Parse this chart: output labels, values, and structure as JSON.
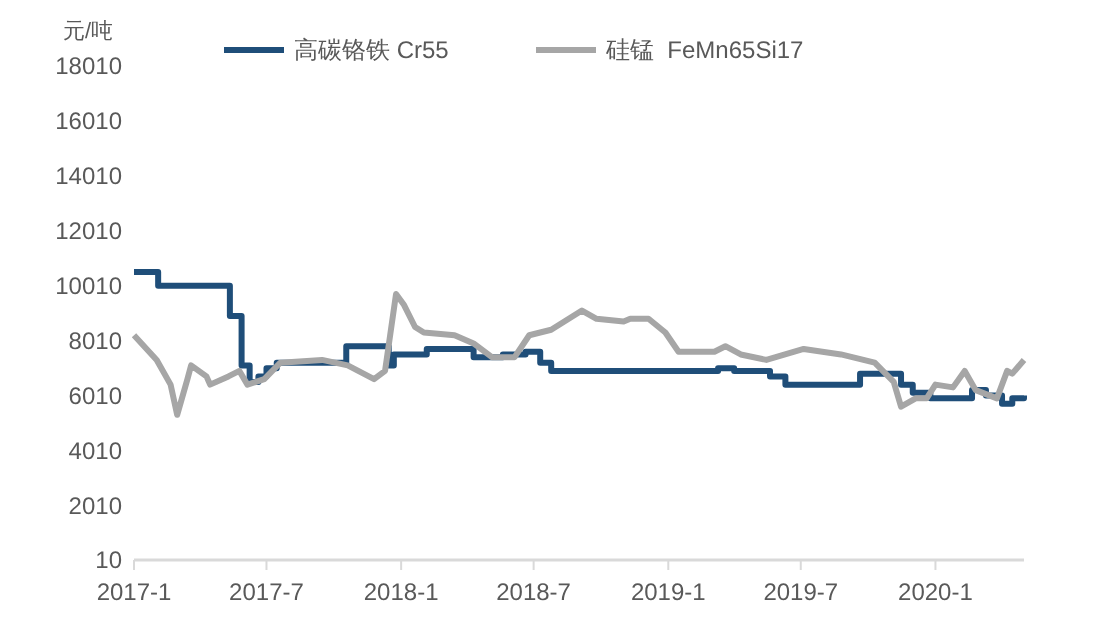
{
  "chart_data": {
    "type": "line",
    "ylabel": "元/吨",
    "xlim": [
      "2017-01-01",
      "2020-05-01"
    ],
    "xticks": [
      {
        "value": "2017-01-01",
        "label": "2017-1"
      },
      {
        "value": "2017-07-01",
        "label": "2017-7"
      },
      {
        "value": "2018-01-01",
        "label": "2018-1"
      },
      {
        "value": "2018-07-01",
        "label": "2018-7"
      },
      {
        "value": "2019-01-01",
        "label": "2019-1"
      },
      {
        "value": "2019-07-01",
        "label": "2019-7"
      },
      {
        "value": "2020-01-01",
        "label": "2020-1"
      }
    ],
    "ylim": [
      10,
      18010
    ],
    "yticks": [
      10,
      2010,
      4010,
      6010,
      8010,
      10010,
      12010,
      14010,
      16010,
      18010
    ],
    "grid": false,
    "legend": "top",
    "marker": "none",
    "line_style": "solid",
    "series": [
      {
        "name": "高碳铬铁 Cr55",
        "type": "step",
        "color": "#1f4e79",
        "x": [
          "2017-01-01",
          "2017-02-03",
          "2017-05-12",
          "2017-05-28",
          "2017-06-08",
          "2017-06-20",
          "2017-07-01",
          "2017-07-15",
          "2017-10-18",
          "2017-12-15",
          "2017-12-22",
          "2018-02-05",
          "2018-04-10",
          "2018-05-20",
          "2018-06-20",
          "2018-07-10",
          "2018-07-25",
          "2019-03-10",
          "2019-04-01",
          "2019-05-20",
          "2019-06-10",
          "2019-09-20",
          "2019-11-15",
          "2019-12-01",
          "2019-12-25",
          "2020-02-20",
          "2020-03-10",
          "2020-04-01",
          "2020-04-15",
          "2020-05-01"
        ],
        "values": [
          10500,
          10000,
          8900,
          7100,
          6500,
          6700,
          7000,
          7200,
          7800,
          7100,
          7500,
          7700,
          7400,
          7500,
          7600,
          7200,
          6900,
          7000,
          6900,
          6700,
          6400,
          6800,
          6400,
          6100,
          5900,
          6200,
          6000,
          5700,
          5900,
          6000
        ]
      },
      {
        "name": "硅锰  FeMn65Si17",
        "color": "#a6a6a6",
        "x": [
          "2017-01-01",
          "2017-02-01",
          "2017-02-20",
          "2017-03-01",
          "2017-03-15",
          "2017-03-20",
          "2017-04-10",
          "2017-04-15",
          "2017-05-10",
          "2017-05-25",
          "2017-06-05",
          "2017-06-28",
          "2017-07-20",
          "2017-09-15",
          "2017-10-20",
          "2017-11-25",
          "2017-12-10",
          "2017-12-25",
          "2018-01-05",
          "2018-01-20",
          "2018-02-01",
          "2018-03-15",
          "2018-04-10",
          "2018-05-05",
          "2018-06-05",
          "2018-06-25",
          "2018-07-25",
          "2018-09-05",
          "2018-09-25",
          "2018-11-01",
          "2018-11-10",
          "2018-12-05",
          "2018-12-28",
          "2019-01-15",
          "2019-03-05",
          "2019-03-20",
          "2019-04-10",
          "2019-05-15",
          "2019-07-05",
          "2019-08-25",
          "2019-10-10",
          "2019-11-05",
          "2019-11-15",
          "2019-12-05",
          "2019-12-20",
          "2020-01-01",
          "2020-01-25",
          "2020-02-10",
          "2020-02-25",
          "2020-03-25",
          "2020-04-08",
          "2020-04-15",
          "2020-05-01"
        ],
        "values": [
          8200,
          7300,
          6400,
          5300,
          6600,
          7100,
          6700,
          6400,
          6700,
          6900,
          6400,
          6600,
          7200,
          7300,
          7100,
          6600,
          6900,
          9700,
          9300,
          8500,
          8300,
          8200,
          7900,
          7400,
          7400,
          8200,
          8400,
          9100,
          8800,
          8700,
          8800,
          8800,
          8300,
          7600,
          7600,
          7800,
          7500,
          7300,
          7700,
          7500,
          7200,
          6500,
          5600,
          5900,
          5900,
          6400,
          6300,
          6900,
          6200,
          5900,
          6900,
          6800,
          7300
        ]
      }
    ]
  }
}
